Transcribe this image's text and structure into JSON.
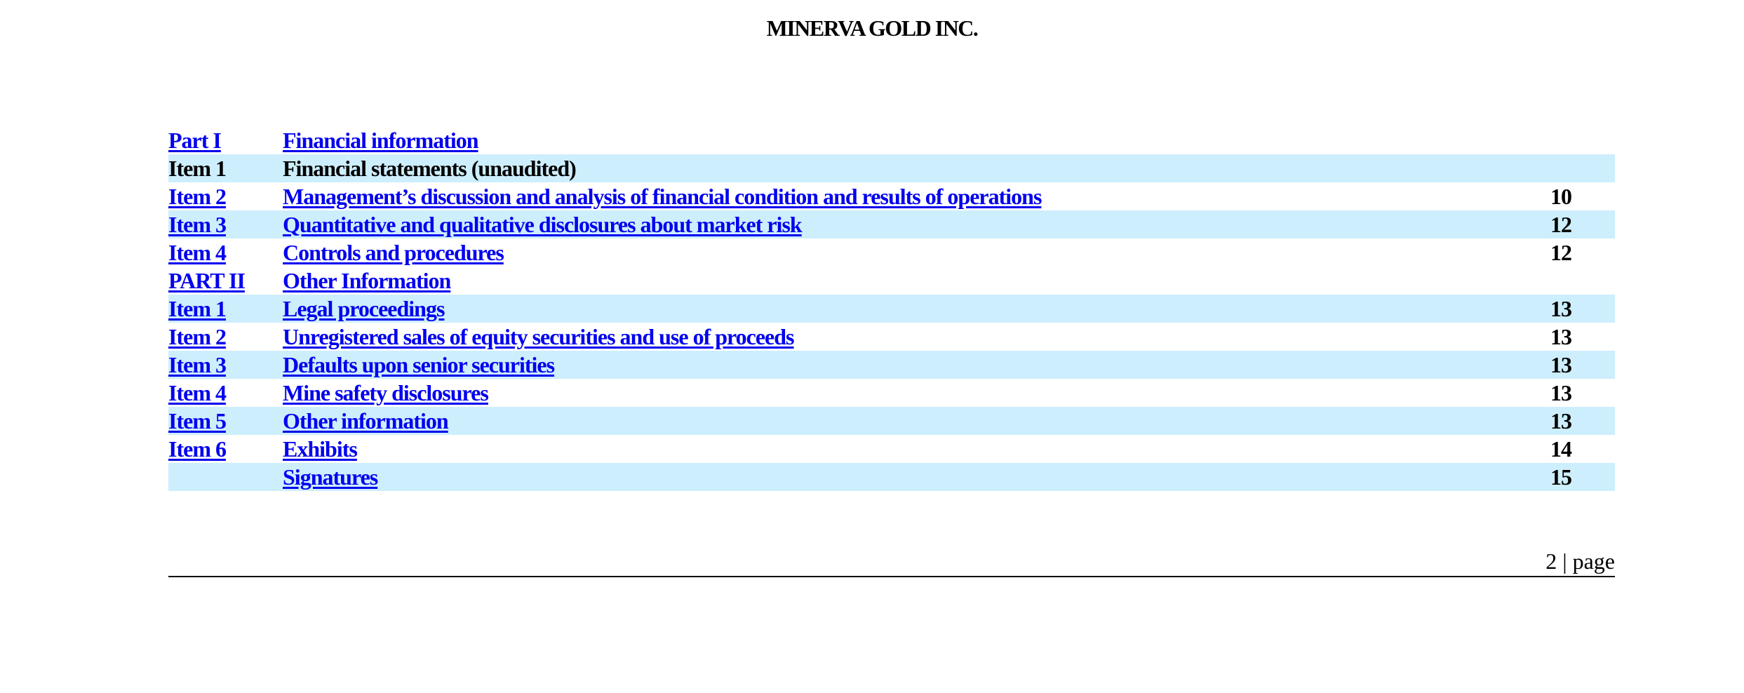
{
  "document": {
    "company": "MINERVA GOLD INC."
  },
  "toc": {
    "rows": [
      {
        "item": "Part I",
        "title": "Financial information",
        "page": "",
        "item_link": true,
        "title_link": true,
        "shaded": false
      },
      {
        "item": "Item 1",
        "title": "Financial statements (unaudited)",
        "page": "",
        "item_link": false,
        "title_link": false,
        "shaded": true
      },
      {
        "item": "Item 2",
        "title": "Management’s discussion and analysis of financial condition and results of operations",
        "page": "10",
        "item_link": true,
        "title_link": true,
        "shaded": false
      },
      {
        "item": "Item 3",
        "title": "Quantitative and qualitative disclosures about market risk",
        "page": "12",
        "item_link": true,
        "title_link": true,
        "shaded": true
      },
      {
        "item": "Item 4",
        "title": "Controls and procedures",
        "page": "12",
        "item_link": true,
        "title_link": true,
        "shaded": false
      },
      {
        "item": "PART II",
        "title": "Other Information",
        "page": "",
        "item_link": true,
        "title_link": true,
        "shaded": false
      },
      {
        "item": "Item 1",
        "title": "Legal proceedings",
        "page": "13",
        "item_link": true,
        "title_link": true,
        "shaded": true
      },
      {
        "item": "Item 2",
        "title": "Unregistered sales of equity securities and use of proceeds",
        "page": "13",
        "item_link": true,
        "title_link": true,
        "shaded": false
      },
      {
        "item": "Item 3",
        "title": "Defaults upon senior securities",
        "page": "13",
        "item_link": true,
        "title_link": true,
        "shaded": true
      },
      {
        "item": "Item 4",
        "title": "Mine safety disclosures",
        "page": "13",
        "item_link": true,
        "title_link": true,
        "shaded": false
      },
      {
        "item": "Item 5",
        "title": "Other information",
        "page": "13",
        "item_link": true,
        "title_link": true,
        "shaded": true
      },
      {
        "item": "Item 6",
        "title": "Exhibits",
        "page": "14",
        "item_link": true,
        "title_link": true,
        "shaded": false
      },
      {
        "item": "",
        "title": "Signatures",
        "page": "15",
        "item_link": false,
        "title_link": true,
        "shaded": true
      }
    ]
  },
  "footer": {
    "page_label": "2 | page"
  },
  "colors": {
    "link": "#0000ee",
    "row_shade": "#cdeefd",
    "text": "#000000"
  }
}
